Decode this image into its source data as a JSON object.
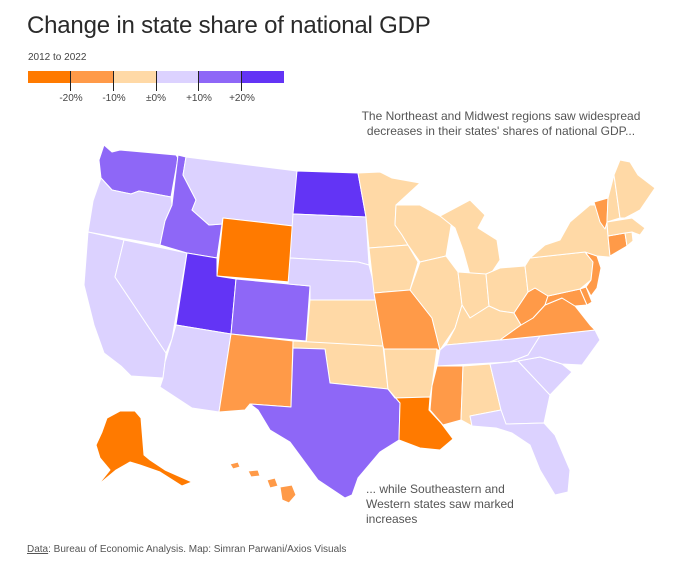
{
  "title": "Change in state share of national GDP",
  "subtitle": "2012 to 2022",
  "legend": {
    "bins": [
      {
        "color": "#ff7a00"
      },
      {
        "color": "#ff9a48"
      },
      {
        "color": "#ffd9a6"
      },
      {
        "color": "#dcd2ff"
      },
      {
        "color": "#8e67f7"
      },
      {
        "color": "#6334f5"
      }
    ],
    "labels": [
      "-20%",
      "-10%",
      "±0%",
      "+10%",
      "+20%"
    ]
  },
  "annotations": {
    "northeast": "The Northeast and Midwest regions saw widespread decreases in their states' shares of national GDP...",
    "southeast": "... while Southeastern and Western states saw marked increases"
  },
  "footer": {
    "source_label": "Data",
    "source_text": ": Bureau of Economic Analysis. Map: Simran Parwani/Axios Visuals"
  },
  "colors": {
    "strong_decrease": "#ff7a00",
    "decrease": "#ff9a48",
    "slight_decrease": "#ffd9a6",
    "slight_increase": "#dcd2ff",
    "increase": "#8e67f7",
    "strong_increase": "#6334f5"
  },
  "states": [
    {
      "abbr": "WA",
      "category": "increase"
    },
    {
      "abbr": "OR",
      "category": "slight_increase"
    },
    {
      "abbr": "CA",
      "category": "slight_increase"
    },
    {
      "abbr": "NV",
      "category": "slight_increase"
    },
    {
      "abbr": "ID",
      "category": "increase"
    },
    {
      "abbr": "MT",
      "category": "slight_increase"
    },
    {
      "abbr": "WY",
      "category": "strong_decrease"
    },
    {
      "abbr": "UT",
      "category": "strong_increase"
    },
    {
      "abbr": "AZ",
      "category": "slight_increase"
    },
    {
      "abbr": "CO",
      "category": "increase"
    },
    {
      "abbr": "NM",
      "category": "decrease"
    },
    {
      "abbr": "ND",
      "category": "strong_increase"
    },
    {
      "abbr": "SD",
      "category": "slight_increase"
    },
    {
      "abbr": "NE",
      "category": "slight_increase"
    },
    {
      "abbr": "KS",
      "category": "slight_decrease"
    },
    {
      "abbr": "OK",
      "category": "slight_decrease"
    },
    {
      "abbr": "TX",
      "category": "increase"
    },
    {
      "abbr": "MN",
      "category": "slight_decrease"
    },
    {
      "abbr": "IA",
      "category": "slight_decrease"
    },
    {
      "abbr": "MO",
      "category": "decrease"
    },
    {
      "abbr": "AR",
      "category": "slight_decrease"
    },
    {
      "abbr": "LA",
      "category": "strong_decrease"
    },
    {
      "abbr": "WI",
      "category": "slight_decrease"
    },
    {
      "abbr": "IL",
      "category": "slight_decrease"
    },
    {
      "abbr": "MI",
      "category": "slight_decrease"
    },
    {
      "abbr": "IN",
      "category": "slight_decrease"
    },
    {
      "abbr": "OH",
      "category": "slight_decrease"
    },
    {
      "abbr": "KY",
      "category": "slight_decrease"
    },
    {
      "abbr": "TN",
      "category": "slight_increase"
    },
    {
      "abbr": "MS",
      "category": "decrease"
    },
    {
      "abbr": "AL",
      "category": "slight_decrease"
    },
    {
      "abbr": "GA",
      "category": "slight_increase"
    },
    {
      "abbr": "FL",
      "category": "slight_increase"
    },
    {
      "abbr": "SC",
      "category": "slight_increase"
    },
    {
      "abbr": "NC",
      "category": "slight_increase"
    },
    {
      "abbr": "VA",
      "category": "decrease"
    },
    {
      "abbr": "WV",
      "category": "decrease"
    },
    {
      "abbr": "MD",
      "category": "decrease"
    },
    {
      "abbr": "DE",
      "category": "decrease"
    },
    {
      "abbr": "NJ",
      "category": "decrease"
    },
    {
      "abbr": "PA",
      "category": "slight_decrease"
    },
    {
      "abbr": "NY",
      "category": "slight_decrease"
    },
    {
      "abbr": "CT",
      "category": "decrease"
    },
    {
      "abbr": "RI",
      "category": "slight_decrease"
    },
    {
      "abbr": "MA",
      "category": "slight_decrease"
    },
    {
      "abbr": "VT",
      "category": "decrease"
    },
    {
      "abbr": "NH",
      "category": "slight_decrease"
    },
    {
      "abbr": "ME",
      "category": "slight_decrease"
    },
    {
      "abbr": "AK",
      "category": "strong_decrease"
    },
    {
      "abbr": "HI",
      "category": "decrease"
    }
  ]
}
